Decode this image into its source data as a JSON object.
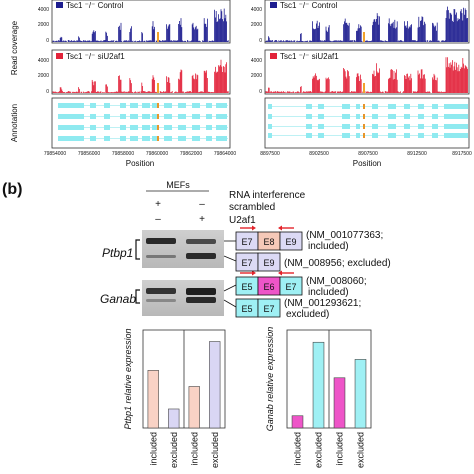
{
  "panel_label": "(b)",
  "top_left": {
    "legend_control": "Tsc1 ⁻/⁻ Control",
    "legend_knockdown": "Tsc1 ⁻/⁻ siU2af1",
    "yticks_control": [
      "4000",
      "2000",
      "0"
    ],
    "yticks_knockdown": [
      "4000",
      "2000",
      "0"
    ],
    "xticks": [
      "79854000",
      "79856000",
      "79858000",
      "79860000",
      "79862000",
      "79864000"
    ],
    "xlabel": "Position"
  },
  "top_right": {
    "legend_control": "Tsc1 ⁻/⁻ Control",
    "legend_knockdown": "Tsc1 ⁻/⁻ siU2af1",
    "yticks_control": [
      "4000",
      "2000",
      "0"
    ],
    "yticks_knockdown": [
      "4000",
      "2000",
      "0"
    ],
    "xticks": [
      "8897500",
      "8902500",
      "8907500",
      "8912500",
      "8917500"
    ],
    "xlabel": "Position"
  },
  "ylabel_coverage": "Read coverage",
  "ylabel_annotation": "Annotation",
  "gel": {
    "cells": "MEFs",
    "rnai": "RNA interference",
    "scrambled": "scrambled",
    "u2af1": "U2af1",
    "plus": "+",
    "minus": "–",
    "gene1": "Ptbp1",
    "gene2": "Ganab",
    "ptbp1_included": [
      "E7",
      "E8",
      "E9"
    ],
    "ptbp1_excluded": [
      "E7",
      "E9"
    ],
    "ganab_included": [
      "E5",
      "E6",
      "E7"
    ],
    "ganab_excluded": [
      "E5",
      "E7"
    ],
    "ptbp1_inc_note": [
      "(NM_001077363;",
      "included)"
    ],
    "ptbp1_exc_note": "(NM_008956; excluded)",
    "ganab_inc_note": [
      "(NM_008060;",
      "included)"
    ],
    "ganab_exc_note": [
      "(NM_001293621;",
      "excluded)"
    ]
  },
  "chart_data": [
    {
      "type": "bar",
      "ylabel": "Ptbp1 relative expression",
      "categories": [
        "included",
        "excluded",
        "included",
        "excluded"
      ],
      "values": [
        1.0,
        0.33,
        0.72,
        1.5
      ],
      "ylim": [
        0,
        1.7
      ],
      "colors": [
        "#f9d2c5",
        "#d9d6f4",
        "#f9d2c5",
        "#d9d6f4"
      ]
    },
    {
      "type": "bar",
      "ylabel": "Ganab relative expression",
      "categories": [
        "included",
        "excluded",
        "included",
        "excluded"
      ],
      "values": [
        1.0,
        7.0,
        4.1,
        5.6
      ],
      "ylim": [
        0,
        8
      ],
      "colors": [
        "#ee55c8",
        "#9ff0f4",
        "#ee55c8",
        "#9ff0f4"
      ]
    }
  ]
}
